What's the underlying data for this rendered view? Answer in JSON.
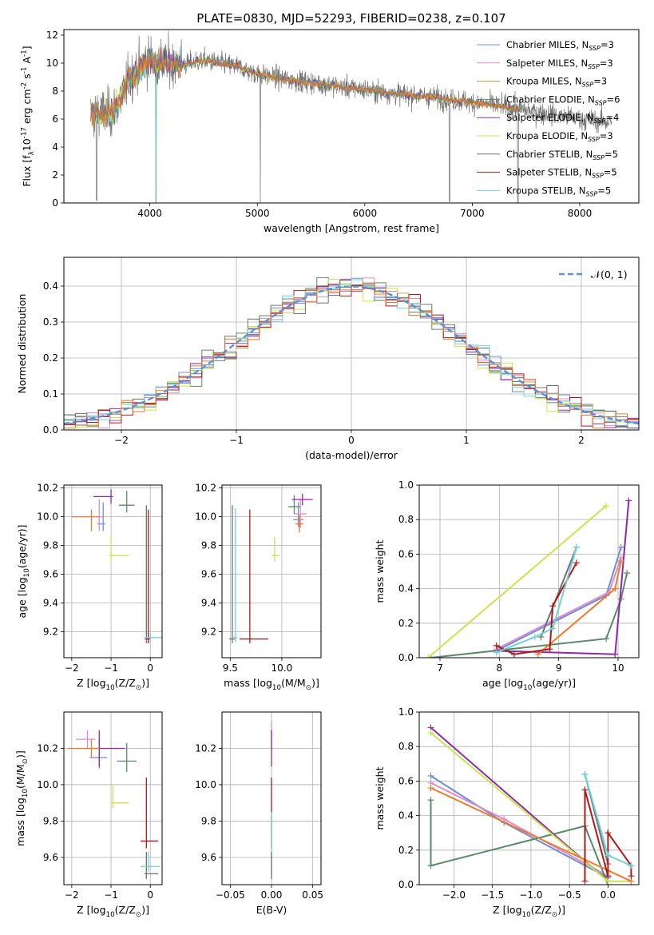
{
  "title": "PLATE=0830, MJD=52293, FIBERID=0238, z=0.107",
  "colors": [
    "#6a8fd8",
    "#e28ac9",
    "#b0a040",
    "#5a8a6a",
    "#8e2aa8",
    "#c8e64a",
    "#707070",
    "#b01818",
    "#6fd3dc",
    "#ee7a2a"
  ],
  "chart_data": [
    {
      "id": "spectrum",
      "type": "line",
      "xlabel": "wavelength [Angstrom, rest frame]",
      "ylabel": "Flux [f$_\\lambda$10$^{-17}$ erg cm$^{-2}$ s$^{-1}$ A$^{-1}$]",
      "xlim": [
        3200,
        8550
      ],
      "ylim": [
        0,
        12.4
      ],
      "xticks": [
        4000,
        5000,
        6000,
        7000,
        8000
      ],
      "yticks": [
        0,
        2,
        4,
        6,
        8,
        10,
        12
      ],
      "grid": false,
      "legend_position": "upper-right",
      "legend": [
        "Chabrier MILES, N_SSP=3",
        "Salpeter MILES, N_SSP=3",
        "Kroupa MILES, N_SSP=3",
        "Chabrier ELODIE, N_SSP=6",
        "Salpeter ELODIE, N_SSP=4",
        "Kroupa ELODIE, N_SSP=3",
        "Chabrier STELIB, N_SSP=5",
        "Salpeter STELIB, N_SSP=5",
        "Kroupa STELIB, N_SSP=5"
      ],
      "continuum": {
        "wavelength": [
          3450,
          3550,
          3650,
          3720,
          3800,
          3900,
          4000,
          4100,
          4300,
          4500,
          4800,
          5000,
          5300,
          5600,
          6000,
          6300,
          6600,
          7000,
          7300,
          7600,
          8000,
          8300
        ],
        "flux": [
          6.3,
          6.5,
          6.4,
          7.3,
          8.8,
          9.6,
          10.3,
          10.0,
          9.9,
          10.2,
          9.8,
          9.2,
          8.8,
          8.5,
          8.1,
          7.8,
          7.6,
          7.2,
          6.9,
          6.5,
          6.0,
          5.8
        ]
      },
      "observed_range": [
        3450,
        8300
      ],
      "model_range": [
        3450,
        7450
      ]
    },
    {
      "id": "residuals",
      "type": "histogram",
      "xlabel": "(data-model)/error",
      "ylabel": "Normed distribution",
      "xlim": [
        -2.5,
        2.5
      ],
      "ylim": [
        0,
        0.48
      ],
      "xticks": [
        -2,
        -1,
        0,
        1,
        2
      ],
      "yticks": [
        0.0,
        0.1,
        0.2,
        0.3,
        0.4
      ],
      "grid": true,
      "legend_position": "upper-right",
      "reference_label": "𝒩(0, 1)",
      "bin_width": 0.1
    },
    {
      "id": "age-vs-Z",
      "type": "scatter",
      "xlabel": "Z [log$_{10}$(Z/Z$_\\odot$)]",
      "ylabel": "age  [log$_{10}$(age/yr)]",
      "xlim": [
        -2.2,
        0.3
      ],
      "ylim": [
        9.02,
        10.22
      ],
      "xticks": [
        -2,
        -1,
        0
      ],
      "yticks": [
        9.2,
        9.4,
        9.6,
        9.8,
        10.0,
        10.2
      ],
      "grid": true,
      "points": [
        {
          "series": 0,
          "x": -1.2,
          "y": 9.95,
          "xerr": [
            0.15,
            0.05
          ],
          "yerr": [
            0.05,
            0.15
          ]
        },
        {
          "series": 1,
          "x": -1.3,
          "y": 10.0,
          "xerr": [
            0.1,
            0.1
          ],
          "yerr": [
            0.1,
            0.12
          ]
        },
        {
          "series": 3,
          "x": -0.6,
          "y": 10.08,
          "xerr": [
            0.2,
            0.2
          ],
          "yerr": [
            0.05,
            0.1
          ]
        },
        {
          "series": 4,
          "x": -1.0,
          "y": 10.14,
          "xerr": [
            0.45,
            0.05
          ],
          "yerr": [
            0.05,
            0.05
          ]
        },
        {
          "series": 5,
          "x": -1.0,
          "y": 9.73,
          "xerr": [
            0.05,
            0.45
          ],
          "yerr": [
            0.05,
            0.14
          ]
        },
        {
          "series": 9,
          "x": -1.5,
          "y": 10.0,
          "xerr": [
            0.5,
            0.2
          ],
          "yerr": [
            0.1,
            0.05
          ]
        },
        {
          "series": 6,
          "x": -0.1,
          "y": 9.15,
          "xerr": [
            0.05,
            0.05
          ],
          "yerr": [
            0.03,
            0.93
          ]
        },
        {
          "series": 7,
          "x": -0.05,
          "y": 9.15,
          "xerr": [
            0.05,
            0.05
          ],
          "yerr": [
            0.03,
            0.9
          ]
        },
        {
          "series": 8,
          "x": 0.0,
          "y": 9.16,
          "xerr": [
            0.15,
            0.3
          ],
          "yerr": [
            0.03,
            0.03
          ]
        }
      ]
    },
    {
      "id": "age-vs-mass",
      "type": "scatter",
      "xlabel": "mass [log$_{10}$(M/M$_\\odot$)]",
      "ylabel": "",
      "xlim": [
        9.42,
        10.38
      ],
      "ylim": [
        9.02,
        10.22
      ],
      "xticks": [
        9.5,
        10.0
      ],
      "yticks": [
        9.2,
        9.4,
        9.6,
        9.8,
        10.0,
        10.2
      ],
      "grid": true,
      "points": [
        {
          "series": 0,
          "x": 10.16,
          "y": 9.98,
          "xerr": [
            0.05,
            0.05
          ],
          "yerr": [
            0.05,
            0.12
          ]
        },
        {
          "series": 1,
          "x": 10.18,
          "y": 10.02,
          "xerr": [
            0.06,
            0.06
          ],
          "yerr": [
            0.1,
            0.1
          ]
        },
        {
          "series": 3,
          "x": 10.12,
          "y": 10.07,
          "xerr": [
            0.06,
            0.06
          ],
          "yerr": [
            0.05,
            0.08
          ]
        },
        {
          "series": 4,
          "x": 10.2,
          "y": 10.12,
          "xerr": [
            0.1,
            0.1
          ],
          "yerr": [
            0.04,
            0.04
          ]
        },
        {
          "series": 5,
          "x": 9.93,
          "y": 9.73,
          "xerr": [
            0.03,
            0.05
          ],
          "yerr": [
            0.04,
            0.13
          ]
        },
        {
          "series": 9,
          "x": 10.17,
          "y": 9.95,
          "xerr": [
            0.04,
            0.04
          ],
          "yerr": [
            0.06,
            0.06
          ]
        },
        {
          "series": 6,
          "x": 9.52,
          "y": 9.15,
          "xerr": [
            0.03,
            0.03
          ],
          "yerr": [
            0.03,
            0.93
          ]
        },
        {
          "series": 7,
          "x": 9.69,
          "y": 9.15,
          "xerr": [
            0.1,
            0.18
          ],
          "yerr": [
            0.03,
            0.9
          ]
        },
        {
          "series": 8,
          "x": 9.55,
          "y": 9.16,
          "xerr": [
            0.02,
            0.02
          ],
          "yerr": [
            0.03,
            0.9
          ]
        }
      ]
    },
    {
      "id": "weight-vs-age",
      "type": "line",
      "xlabel": "age  [log$_{10}$(age/yr)]",
      "ylabel": "mass weight",
      "xlim": [
        6.65,
        10.35
      ],
      "ylim": [
        0,
        1.0
      ],
      "xticks": [
        7,
        8,
        9,
        10
      ],
      "yticks": [
        0.0,
        0.2,
        0.4,
        0.6,
        0.8,
        1.0
      ],
      "grid": true,
      "series": [
        {
          "series": 0,
          "x": [
            7.95,
            9.8,
            10.05
          ],
          "y": [
            0.04,
            0.36,
            0.64
          ]
        },
        {
          "series": 1,
          "x": [
            7.95,
            9.85,
            10.05
          ],
          "y": [
            0.05,
            0.38,
            0.58
          ]
        },
        {
          "series": 3,
          "x": [
            6.85,
            9.8,
            10.05,
            10.15
          ],
          "y": [
            0.0,
            0.11,
            0.34,
            0.49
          ]
        },
        {
          "series": 4,
          "x": [
            7.95,
            9.95,
            10.18
          ],
          "y": [
            0.04,
            0.02,
            0.91
          ]
        },
        {
          "series": 5,
          "x": [
            6.8,
            9.8
          ],
          "y": [
            0.0,
            0.88
          ]
        },
        {
          "series": 9,
          "x": [
            8.65,
            9.95,
            10.05
          ],
          "y": [
            0.02,
            0.4,
            0.56
          ]
        },
        {
          "series": 6,
          "x": [
            8.7,
            9.3
          ],
          "y": [
            0.12,
            0.64
          ]
        },
        {
          "series": 7,
          "x": [
            7.95,
            8.25,
            8.85,
            8.9,
            9.3
          ],
          "y": [
            0.07,
            0.02,
            0.05,
            0.3,
            0.55
          ]
        },
        {
          "series": 8,
          "x": [
            7.95,
            8.6,
            8.9,
            9.3
          ],
          "y": [
            0.03,
            0.12,
            0.17,
            0.64
          ]
        }
      ]
    },
    {
      "id": "mass-vs-Z",
      "type": "scatter",
      "xlabel": "Z [log$_{10}$(Z/Z$_\\odot$)]",
      "ylabel": "mass [log$_{10}$(M/M$_\\odot$)]",
      "xlim": [
        -2.2,
        0.3
      ],
      "ylim": [
        9.45,
        10.4
      ],
      "xticks": [
        -2,
        -1,
        0
      ],
      "yticks": [
        9.6,
        9.8,
        10.0,
        10.2
      ],
      "grid": true,
      "points": [
        {
          "series": 0,
          "x": -1.3,
          "y": 10.15,
          "xerr": [
            0.25,
            0.2
          ],
          "yerr": [
            0.06,
            0.1
          ]
        },
        {
          "series": 1,
          "x": -1.6,
          "y": 10.25,
          "xerr": [
            0.3,
            0.2
          ],
          "yerr": [
            0.05,
            0.05
          ]
        },
        {
          "series": 3,
          "x": -0.6,
          "y": 10.13,
          "xerr": [
            0.25,
            0.25
          ],
          "yerr": [
            0.06,
            0.1
          ]
        },
        {
          "series": 4,
          "x": -1.3,
          "y": 10.2,
          "xerr": [
            0.2,
            0.65
          ],
          "yerr": [
            0.1,
            0.1
          ]
        },
        {
          "series": 5,
          "x": -0.95,
          "y": 9.9,
          "xerr": [
            0.05,
            0.4
          ],
          "yerr": [
            0.03,
            0.1
          ]
        },
        {
          "series": 9,
          "x": -1.5,
          "y": 10.2,
          "xerr": [
            0.6,
            0.2
          ],
          "yerr": [
            0.05,
            0.05
          ]
        },
        {
          "series": 6,
          "x": -0.1,
          "y": 9.51,
          "xerr": [
            0.05,
            0.3
          ],
          "yerr": [
            0.03,
            0.12
          ]
        },
        {
          "series": 7,
          "x": -0.1,
          "y": 9.69,
          "xerr": [
            0.15,
            0.3
          ],
          "yerr": [
            0.04,
            0.35
          ]
        },
        {
          "series": 8,
          "x": -0.05,
          "y": 9.55,
          "xerr": [
            0.2,
            0.3
          ],
          "yerr": [
            0.03,
            0.08
          ]
        }
      ]
    },
    {
      "id": "mass-vs-EBV",
      "type": "scatter",
      "xlabel": "E(B-V)",
      "ylabel": "",
      "xlim": [
        -0.06,
        0.06
      ],
      "ylim": [
        9.45,
        10.4
      ],
      "xticks": [
        -0.05,
        0.0,
        0.05
      ],
      "yticks": [
        9.6,
        9.8,
        10.0,
        10.2
      ],
      "grid": true,
      "points": [
        {
          "series": 1,
          "x": 0.0,
          "y": 10.25,
          "xerr": [
            0,
            0
          ],
          "yerr": [
            0.05,
            0.1
          ]
        },
        {
          "series": 4,
          "x": 0.0,
          "y": 10.2,
          "xerr": [
            0,
            0
          ],
          "yerr": [
            0.1,
            0.1
          ]
        },
        {
          "series": 7,
          "x": 0.0,
          "y": 9.69,
          "xerr": [
            0,
            0
          ],
          "yerr": [
            0.04,
            0.35
          ]
        },
        {
          "series": 8,
          "x": 0.0,
          "y": 9.55,
          "xerr": [
            0,
            0
          ],
          "yerr": [
            0.05,
            0.3
          ]
        },
        {
          "series": 6,
          "x": 0.0,
          "y": 9.51,
          "xerr": [
            0,
            0
          ],
          "yerr": [
            0.03,
            0.12
          ]
        }
      ]
    },
    {
      "id": "weight-vs-Z",
      "type": "line",
      "xlabel": "Z [log$_{10}$(Z/Z$_\\odot$)]",
      "ylabel": "mass weight",
      "xlim": [
        -2.45,
        0.4
      ],
      "ylim": [
        0,
        1.0
      ],
      "xticks": [
        -2.0,
        -1.5,
        -1.0,
        -0.5,
        0.0
      ],
      "yticks": [
        0.0,
        0.2,
        0.4,
        0.6,
        0.8,
        1.0
      ],
      "grid": true,
      "series": [
        {
          "series": 0,
          "x": [
            -2.3,
            -1.35,
            0.0
          ],
          "y": [
            0.63,
            0.36,
            0.04
          ]
        },
        {
          "series": 1,
          "x": [
            -2.3,
            -1.35,
            0.0
          ],
          "y": [
            0.59,
            0.38,
            0.05
          ]
        },
        {
          "series": 3,
          "x": [
            -2.3,
            -2.3,
            -0.3,
            0.0
          ],
          "y": [
            0.49,
            0.11,
            0.34,
            0.0
          ]
        },
        {
          "series": 4,
          "x": [
            -2.3,
            0.0
          ],
          "y": [
            0.91,
            0.02
          ]
        },
        {
          "series": 5,
          "x": [
            -2.3,
            0.0,
            0.3
          ],
          "y": [
            0.88,
            0.02,
            0.02
          ]
        },
        {
          "series": 9,
          "x": [
            -2.3,
            0.3
          ],
          "y": [
            0.56,
            0.02
          ]
        },
        {
          "series": 6,
          "x": [
            -0.3,
            0.0
          ],
          "y": [
            0.64,
            0.12
          ]
        },
        {
          "series": 7,
          "x": [
            -0.3,
            -0.3,
            0.0,
            0.0,
            0.3,
            0.3
          ],
          "y": [
            0.02,
            0.55,
            0.05,
            0.3,
            0.11,
            0.05
          ]
        },
        {
          "series": 8,
          "x": [
            -0.3,
            0.0,
            0.3
          ],
          "y": [
            0.64,
            0.17,
            0.11
          ]
        }
      ]
    }
  ]
}
